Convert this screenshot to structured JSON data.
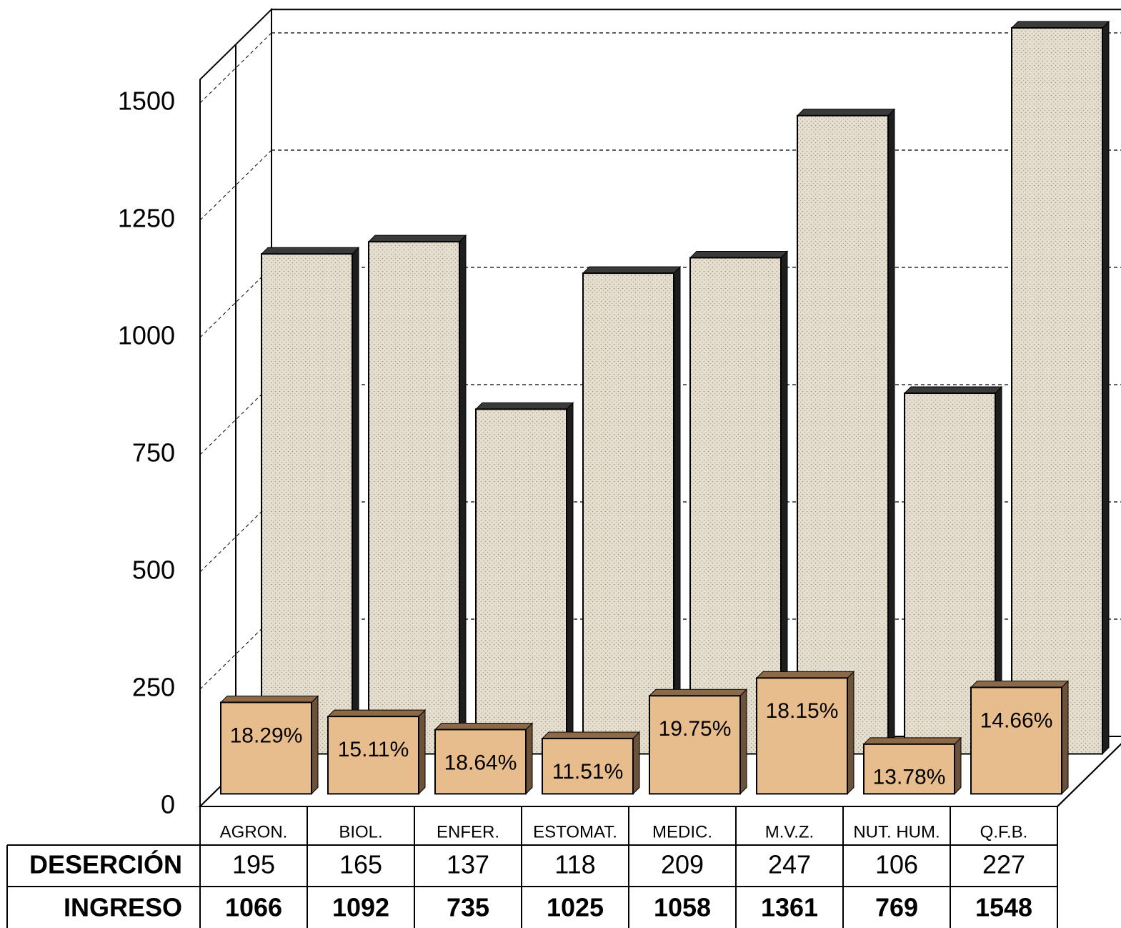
{
  "chart_data": {
    "type": "bar",
    "categories": [
      "AGRON.",
      "BIOL.",
      "ENFER.",
      "ESTOMAT.",
      "MEDIC.",
      "M.V.Z.",
      "NUT. HUM.",
      "Q.F.B."
    ],
    "series": [
      {
        "name": "DESERCIÓN",
        "color": "#e8bd8e",
        "values": [
          195,
          165,
          137,
          118,
          209,
          247,
          106,
          227
        ]
      },
      {
        "name": "INGRESO",
        "color": "#e6dfcf",
        "values": [
          1066,
          1092,
          735,
          1025,
          1058,
          1361,
          769,
          1548
        ]
      }
    ],
    "annotations": [
      "18.29%",
      "15.11%",
      "18.64%",
      "11.51%",
      "19.75%",
      "18.15%",
      "13.78%",
      "14.66%"
    ],
    "ylim": [
      0,
      1550
    ],
    "yticks": [
      0,
      250,
      500,
      750,
      1000,
      1250,
      1500
    ],
    "grid": true
  }
}
